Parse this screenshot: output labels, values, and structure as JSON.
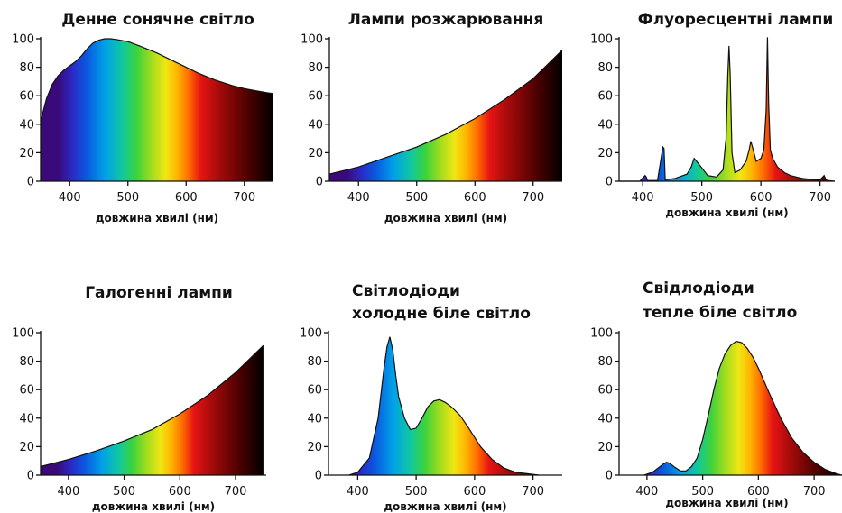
{
  "spectrum_colors": [
    "#3a0a7a",
    "#2a2ac8",
    "#0a5ae0",
    "#00a0e8",
    "#10c8a0",
    "#3cd23c",
    "#a0dc1e",
    "#f0e614",
    "#ffb400",
    "#ff6a00",
    "#e61414",
    "#a00a0a",
    "#460000",
    "#000000"
  ],
  "chart_data": [
    {
      "type": "area",
      "title": "Денне сонячне світло",
      "xlabel": "довжина хвилі (нм)",
      "ylabel": "",
      "xlim": [
        350,
        750
      ],
      "ylim": [
        0,
        100
      ],
      "xticks": [
        400,
        500,
        600,
        700
      ],
      "yticks": [
        0,
        20,
        40,
        60,
        80,
        100
      ],
      "x": [
        350,
        360,
        370,
        380,
        390,
        400,
        410,
        420,
        430,
        440,
        450,
        460,
        470,
        480,
        500,
        520,
        550,
        580,
        600,
        620,
        650,
        680,
        700,
        720,
        740,
        750
      ],
      "y": [
        42,
        58,
        68,
        74,
        78,
        81,
        84,
        88,
        93,
        97,
        99,
        100,
        100,
        99.5,
        98,
        95,
        90,
        84,
        80,
        76,
        71,
        67,
        65,
        63.5,
        62,
        61.5
      ]
    },
    {
      "type": "area",
      "title": "Лампи розжарювання",
      "xlabel": "довжина хвилі (нм)",
      "ylabel": "",
      "xlim": [
        350,
        750
      ],
      "ylim": [
        0,
        100
      ],
      "xticks": [
        400,
        500,
        600,
        700
      ],
      "yticks": [
        0,
        20,
        40,
        60,
        80,
        100
      ],
      "x": [
        350,
        400,
        450,
        500,
        550,
        600,
        650,
        700,
        750
      ],
      "y": [
        5,
        10,
        17,
        24,
        33,
        44,
        57,
        72,
        92
      ]
    },
    {
      "type": "area",
      "title": "Флуоресцентні лампи",
      "xlabel": "довжина хвилі (нм)",
      "ylabel": "",
      "xlim": [
        360,
        725
      ],
      "ylim": [
        0,
        100
      ],
      "xticks": [
        400,
        500,
        600,
        700
      ],
      "yticks": [
        0,
        20,
        40,
        60,
        80,
        100
      ],
      "x": [
        360,
        395,
        404,
        406,
        408,
        425,
        434,
        436,
        438,
        455,
        475,
        482,
        487,
        495,
        510,
        525,
        536,
        541,
        544,
        546,
        548,
        551,
        556,
        565,
        575,
        580,
        583,
        587,
        592,
        600,
        605,
        609,
        611,
        613,
        616,
        620,
        628,
        640,
        650,
        660,
        670,
        690,
        700,
        707,
        710,
        713,
        725
      ],
      "y": [
        0,
        0,
        4,
        3,
        0.5,
        0.5,
        24,
        23,
        1,
        2,
        5,
        10,
        16,
        12,
        4,
        3,
        8,
        30,
        75,
        95,
        75,
        20,
        6,
        8,
        14,
        22,
        28,
        22,
        14,
        16,
        22,
        50,
        101,
        55,
        22,
        16,
        10,
        6,
        4,
        3,
        2,
        1,
        1,
        4,
        1,
        0.5,
        0
      ]
    },
    {
      "type": "area",
      "title": "Галогенні лампи",
      "xlabel": "довжина хвилі (нм)",
      "ylabel": "",
      "xlim": [
        350,
        755
      ],
      "ylim": [
        0,
        100
      ],
      "xticks": [
        400,
        500,
        600,
        700
      ],
      "yticks": [
        0,
        20,
        40,
        60,
        80,
        100
      ],
      "x": [
        350,
        400,
        450,
        500,
        550,
        600,
        650,
        700,
        750
      ],
      "y": [
        6,
        11,
        17,
        24,
        32,
        43,
        56,
        72,
        91
      ]
    },
    {
      "type": "area",
      "title": [
        "Світлодіоди",
        "холодне біле світло"
      ],
      "xlabel": "довжина хвилі (нм)",
      "ylabel": "",
      "xlim": [
        350,
        750
      ],
      "ylim": [
        0,
        100
      ],
      "xticks": [
        400,
        500,
        600,
        700
      ],
      "yticks": [
        0,
        20,
        40,
        60,
        80,
        100
      ],
      "x": [
        385,
        400,
        420,
        435,
        445,
        450,
        455,
        460,
        465,
        470,
        480,
        490,
        500,
        510,
        520,
        530,
        540,
        550,
        560,
        575,
        590,
        610,
        630,
        650,
        670,
        690,
        710
      ],
      "y": [
        0,
        2,
        12,
        40,
        75,
        90,
        97,
        88,
        70,
        55,
        40,
        32,
        33,
        40,
        48,
        52,
        53,
        51,
        48,
        42,
        33,
        20,
        11,
        5,
        2,
        1,
        0
      ]
    },
    {
      "type": "area",
      "title": [
        "Свідлодіоди",
        "тепле біле світло"
      ],
      "xlabel": "довжина хвилі (нм)",
      "ylabel": "",
      "xlim": [
        350,
        750
      ],
      "ylim": [
        0,
        100
      ],
      "xticks": [
        400,
        500,
        600,
        700
      ],
      "yticks": [
        0,
        20,
        40,
        60,
        80,
        100
      ],
      "x": [
        395,
        410,
        420,
        430,
        435,
        440,
        450,
        460,
        470,
        480,
        490,
        500,
        510,
        520,
        530,
        540,
        550,
        560,
        570,
        580,
        590,
        600,
        620,
        640,
        660,
        680,
        700,
        720,
        740,
        750
      ],
      "y": [
        0,
        2,
        5,
        8,
        9,
        8.5,
        5.5,
        3,
        3,
        6,
        12,
        25,
        42,
        60,
        75,
        85,
        91,
        94,
        93,
        89,
        83,
        75,
        57,
        40,
        26,
        16,
        9,
        4,
        1,
        0
      ]
    }
  ]
}
